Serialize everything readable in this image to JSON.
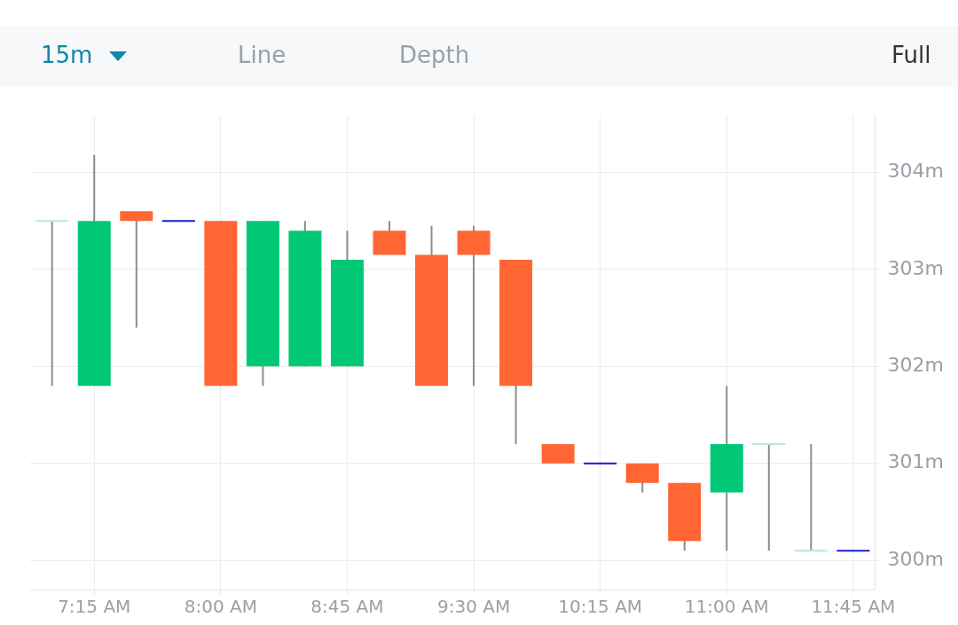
{
  "chart_data": {
    "type": "candlestick",
    "x": [
      7,
      7.25,
      7.5,
      7.75,
      8,
      8.25,
      8.5,
      8.75,
      9,
      9.25,
      9.5,
      9.75,
      10,
      10.25,
      10.5,
      10.75,
      11,
      11.25,
      11.5,
      11.75
    ],
    "ohlc": [
      [
        303.5,
        303.5,
        301.8,
        303.5
      ],
      [
        301.8,
        304.18,
        301.8,
        303.5
      ],
      [
        303.6,
        303.6,
        302.4,
        303.5
      ],
      [
        303.5,
        303.5,
        303.5,
        303.5
      ],
      [
        303.5,
        303.5,
        301.8,
        301.8
      ],
      [
        302.0,
        303.5,
        301.8,
        303.5
      ],
      [
        302.0,
        303.5,
        302.0,
        303.4
      ],
      [
        302.0,
        303.4,
        302.0,
        303.1
      ],
      [
        303.4,
        303.5,
        303.15,
        303.15
      ],
      [
        303.15,
        303.45,
        301.8,
        301.8
      ],
      [
        303.4,
        303.45,
        301.8,
        303.15
      ],
      [
        303.1,
        303.1,
        301.2,
        301.8
      ],
      [
        301.2,
        301.2,
        301.0,
        301.0
      ],
      [
        301.0,
        301.0,
        301.0,
        301.0
      ],
      [
        301.0,
        301.0,
        300.7,
        300.8
      ],
      [
        300.8,
        300.8,
        300.1,
        300.2
      ],
      [
        300.7,
        301.8,
        300.1,
        301.2
      ],
      [
        301.2,
        301.2,
        300.1,
        301.2
      ],
      [
        300.1,
        301.2,
        300.1,
        300.1
      ],
      [
        300.1,
        300.1,
        300.1,
        300.1
      ]
    ],
    "colors": [
      "#b5ead0",
      "#00c875",
      "#ff6633",
      "#1a1acc",
      "#ff6633",
      "#00c875",
      "#00c875",
      "#00c875",
      "#ff6633",
      "#ff6633",
      "#ff6633",
      "#ff6633",
      "#ff6633",
      "#1a1acc",
      "#ff6633",
      "#ff6633",
      "#00c875",
      "#b5ead0",
      "#b5ead0",
      "#1a1acc"
    ],
    "xlim": [
      6.87,
      11.88
    ],
    "xticks": [
      {
        "value": 7.25,
        "label": "7:15 AM"
      },
      {
        "value": 8,
        "label": "8:00 AM"
      },
      {
        "value": 8.75,
        "label": "8:45 AM"
      },
      {
        "value": 9.5,
        "label": "9:30 AM"
      },
      {
        "value": 10.25,
        "label": "10:15 AM"
      },
      {
        "value": 11,
        "label": "11:00 AM"
      },
      {
        "value": 11.75,
        "label": "11:45 AM"
      }
    ],
    "ylim": [
      299.7,
      304.59
    ],
    "yticks": [
      {
        "value": 300,
        "label": "300m"
      },
      {
        "value": 301,
        "label": "301m"
      },
      {
        "value": 302,
        "label": "302m"
      },
      {
        "value": 303,
        "label": "303m"
      },
      {
        "value": 304,
        "label": "304m"
      }
    ],
    "grid": true,
    "legend": false,
    "annotations": [
      "15m",
      "Line",
      "Depth",
      "Full"
    ]
  }
}
